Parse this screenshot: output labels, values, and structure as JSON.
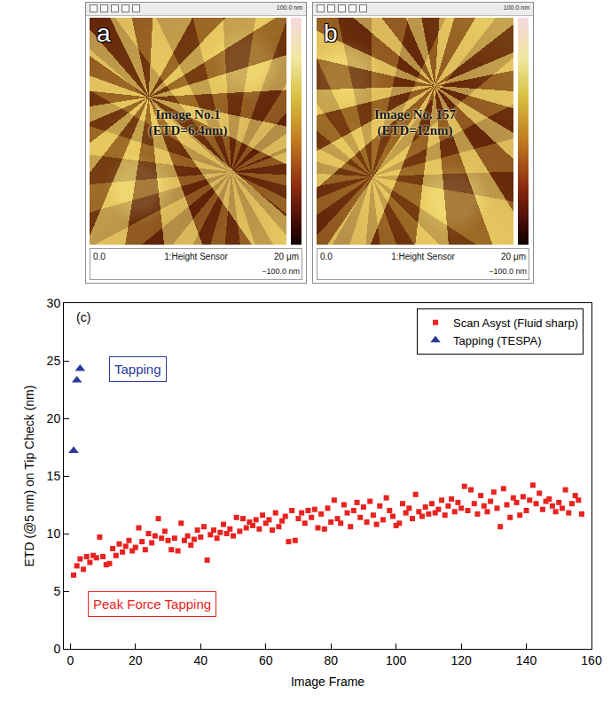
{
  "images": [
    {
      "letter": "a",
      "caption": [
        "Image No.1",
        "(ETD=6.4nm)"
      ],
      "scale_start": "0.0",
      "channel": "1:Height Sensor",
      "scale_end": "20 μm",
      "color_max": "100.0 nm",
      "color_min": "−100.0 nm"
    },
    {
      "letter": "b",
      "caption": [
        "Image No. 157",
        "(ETD=12nm)"
      ],
      "scale_start": "0.0",
      "channel": "1:Height Sensor",
      "scale_end": "20 μm",
      "color_max": "100.0 nm",
      "color_min": "−100.0 nm"
    }
  ],
  "chart_data": {
    "type": "scatter",
    "label": "(c)",
    "xlabel": "Image Frame",
    "ylabel": "ETD (@5 nm) on Tip Check (nm)",
    "xlim": [
      -2,
      160
    ],
    "xticks": [
      0,
      20,
      40,
      60,
      80,
      100,
      120,
      140,
      160
    ],
    "ylim": [
      0,
      30
    ],
    "yticks": [
      0,
      5,
      10,
      15,
      20,
      25,
      30
    ],
    "grid": false,
    "legend": "top-right",
    "annotations": [
      {
        "text": "Tapping",
        "color": "#2b3a9a"
      },
      {
        "text": "Peak Force Tapping",
        "color": "#e8231f"
      }
    ],
    "series": [
      {
        "name": "Scan Asyst (Fluid sharp)",
        "color": "#e8231f",
        "marker": "square",
        "x": [
          1,
          2,
          3,
          4,
          5,
          6,
          7,
          8,
          9,
          10,
          11,
          12,
          13,
          14,
          15,
          16,
          17,
          18,
          19,
          20,
          21,
          22,
          23,
          24,
          25,
          26,
          27,
          28,
          29,
          30,
          31,
          32,
          33,
          34,
          35,
          36,
          37,
          38,
          39,
          40,
          41,
          42,
          43,
          44,
          45,
          46,
          47,
          48,
          49,
          50,
          51,
          52,
          53,
          54,
          55,
          56,
          57,
          58,
          59,
          60,
          61,
          62,
          63,
          64,
          65,
          66,
          67,
          68,
          69,
          70,
          71,
          72,
          73,
          74,
          75,
          76,
          77,
          78,
          79,
          80,
          81,
          82,
          83,
          84,
          85,
          86,
          87,
          88,
          89,
          90,
          91,
          92,
          93,
          94,
          95,
          96,
          97,
          98,
          99,
          100,
          101,
          102,
          103,
          104,
          105,
          106,
          107,
          108,
          109,
          110,
          111,
          112,
          113,
          114,
          115,
          116,
          117,
          118,
          119,
          120,
          121,
          122,
          123,
          124,
          125,
          126,
          127,
          128,
          129,
          130,
          131,
          132,
          133,
          134,
          135,
          136,
          137,
          138,
          139,
          140,
          141,
          142,
          143,
          144,
          145,
          146,
          147,
          148,
          149,
          150,
          151,
          152,
          153,
          154,
          155,
          156,
          157
        ],
        "values": [
          6.4,
          7.2,
          7.8,
          6.9,
          8.0,
          7.5,
          8.1,
          7.9,
          9.7,
          8.0,
          7.3,
          7.4,
          8.7,
          8.1,
          9.1,
          8.4,
          8.9,
          9.4,
          8.5,
          8.8,
          10.5,
          9.3,
          8.6,
          10.0,
          9.2,
          9.8,
          11.3,
          9.6,
          10.2,
          9.4,
          8.6,
          9.6,
          8.5,
          10.9,
          9.4,
          9.8,
          9.0,
          9.5,
          10.3,
          9.7,
          10.6,
          7.7,
          9.9,
          10.3,
          9.6,
          10.1,
          10.8,
          10.0,
          10.4,
          9.8,
          11.4,
          10.2,
          11.3,
          10.5,
          11.0,
          10.7,
          11.2,
          10.4,
          11.6,
          10.9,
          11.2,
          10.3,
          11.8,
          10.6,
          11.1,
          11.5,
          9.3,
          12.0,
          9.4,
          11.3,
          11.8,
          10.9,
          12.0,
          11.4,
          12.1,
          10.5,
          11.7,
          10.4,
          12.2,
          11.0,
          12.9,
          11.3,
          10.9,
          12.5,
          11.8,
          10.6,
          12.0,
          12.7,
          11.4,
          12.3,
          11.0,
          12.8,
          11.6,
          10.8,
          12.4,
          11.2,
          13.1,
          12.0,
          11.5,
          10.7,
          10.9,
          12.6,
          11.8,
          12.2,
          11.3,
          13.4,
          11.9,
          11.5,
          12.3,
          11.7,
          12.6,
          11.8,
          12.1,
          12.9,
          11.6,
          12.4,
          13.0,
          11.9,
          12.7,
          12.2,
          14.1,
          12.0,
          13.8,
          12.6,
          11.7,
          13.3,
          12.4,
          11.9,
          12.8,
          13.6,
          12.2,
          10.6,
          13.9,
          12.5,
          11.4,
          13.1,
          12.7,
          11.6,
          13.2,
          12.0,
          12.9,
          14.2,
          12.6,
          13.5,
          12.1,
          12.8,
          13.0,
          12.4,
          11.9,
          12.7,
          12.2,
          13.8,
          11.8,
          12.6,
          13.3,
          12.9,
          11.7
        ]
      },
      {
        "name": "Tapping (TESPA)",
        "color": "#2b3a9a",
        "marker": "triangle-up",
        "x": [
          1,
          2,
          3
        ],
        "values": [
          17.2,
          23.3,
          24.3
        ]
      }
    ]
  }
}
